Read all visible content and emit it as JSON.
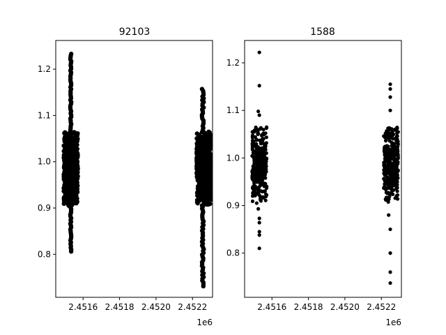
{
  "chart_data": [
    {
      "type": "scatter",
      "title": "92103",
      "xlabel": "",
      "ylabel": "",
      "x_offset_label": "1e6",
      "xlim": [
        2.45145,
        2.45231
      ],
      "ylim": [
        0.707,
        1.262
      ],
      "xticks": [
        2.4516,
        2.4518,
        2.452,
        2.4522
      ],
      "xtick_labels": [
        "2.4516",
        "2.4518",
        "2.4520",
        "2.4522"
      ],
      "yticks": [
        0.8,
        0.9,
        1.0,
        1.1,
        1.2
      ],
      "ytick_labels": [
        "0.8",
        "0.9",
        "1.0",
        "1.1",
        "1.2"
      ],
      "marker_color": "#000000",
      "grid": false,
      "clusters": [
        {
          "x_range": [
            2.451494,
            2.451571
          ],
          "y_core": [
            0.905,
            1.065
          ],
          "outlier_x_range": [
            2.45153,
            2.451535
          ],
          "y_min": 0.806,
          "y_max": 1.236
        },
        {
          "x_range": [
            2.452223,
            2.4523
          ],
          "y_core": [
            0.905,
            1.065
          ],
          "outlier_x_range": [
            2.452252,
            2.452262
          ],
          "y_min": 0.731,
          "y_max": 1.158
        }
      ]
    },
    {
      "type": "scatter",
      "title": "1588",
      "xlabel": "",
      "ylabel": "",
      "x_offset_label": "1e6",
      "xlim": [
        2.45145,
        2.45231
      ],
      "ylim": [
        0.707,
        1.247
      ],
      "xticks": [
        2.4516,
        2.4518,
        2.452,
        2.4522
      ],
      "xtick_labels": [
        "2.4516",
        "2.4518",
        "2.4520",
        "2.4522"
      ],
      "yticks": [
        0.8,
        0.9,
        1.0,
        1.1,
        1.2
      ],
      "ytick_labels": [
        "0.8",
        "0.9",
        "1.0",
        "1.1",
        "1.2"
      ],
      "marker_color": "#000000",
      "grid": false,
      "clusters": [
        {
          "x_range": [
            2.451491,
            2.451571
          ],
          "y_core": [
            0.905,
            1.065
          ],
          "outliers": [
            [
              2.451531,
              1.222
            ],
            [
              2.451531,
              1.152
            ],
            [
              2.451525,
              1.098
            ],
            [
              2.451531,
              1.09
            ],
            [
              2.451525,
              0.893
            ],
            [
              2.451531,
              0.873
            ],
            [
              2.451531,
              0.864
            ],
            [
              2.451531,
              0.845
            ],
            [
              2.451531,
              0.838
            ],
            [
              2.451531,
              0.81
            ]
          ]
        },
        {
          "x_range": [
            2.452213,
            2.452293
          ],
          "y_core": [
            0.905,
            1.065
          ],
          "outliers": [
            [
              2.452249,
              1.155
            ],
            [
              2.452249,
              1.145
            ],
            [
              2.452249,
              1.128
            ],
            [
              2.452249,
              1.1
            ],
            [
              2.45224,
              0.88
            ],
            [
              2.452249,
              0.85
            ],
            [
              2.452249,
              0.8
            ],
            [
              2.452249,
              0.76
            ],
            [
              2.452249,
              0.737
            ]
          ]
        }
      ]
    }
  ]
}
